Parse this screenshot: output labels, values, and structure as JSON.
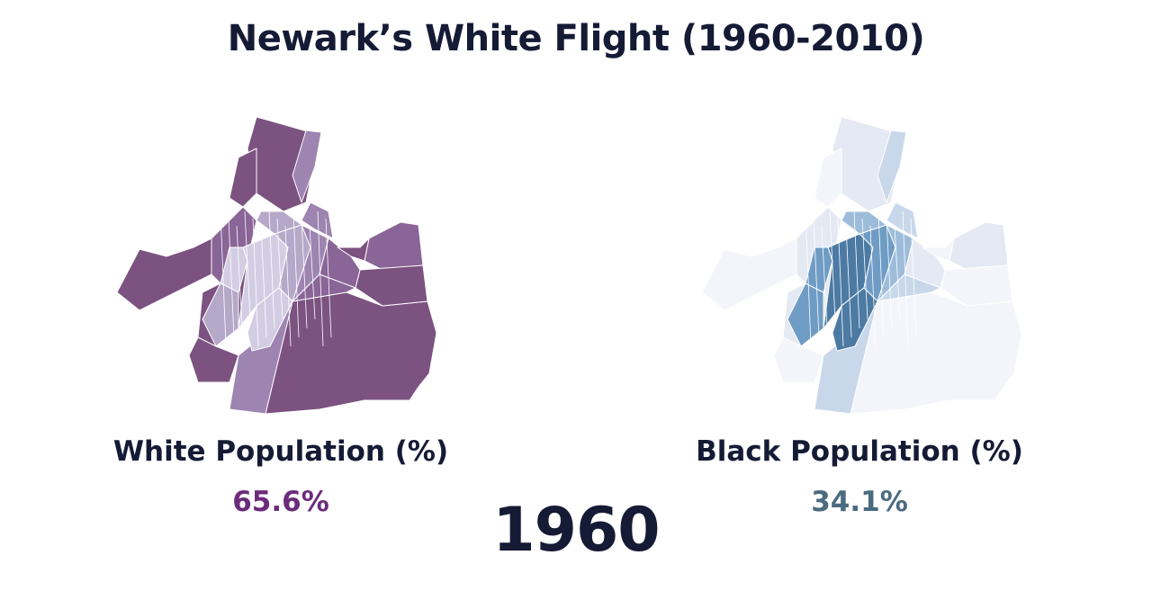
{
  "title": "Newark’s White Flight (1960-2010)",
  "year": "1960",
  "panels": [
    {
      "id": "white",
      "label": "White Population (%)",
      "value": "65.6%",
      "value_color": "#6b2c7a",
      "palette": [
        "#e9e6f1",
        "#d3cde3",
        "#b6a8c9",
        "#9e84b0",
        "#8a6597",
        "#7b5280"
      ]
    },
    {
      "id": "black",
      "label": "Black Population (%)",
      "value": "34.1%",
      "value_color": "#4a6b80",
      "palette": [
        "#f4f5fa",
        "#e4e9f3",
        "#c8d8ea",
        "#9dbcda",
        "#6f9cc4",
        "#4c7aa3"
      ]
    }
  ]
}
